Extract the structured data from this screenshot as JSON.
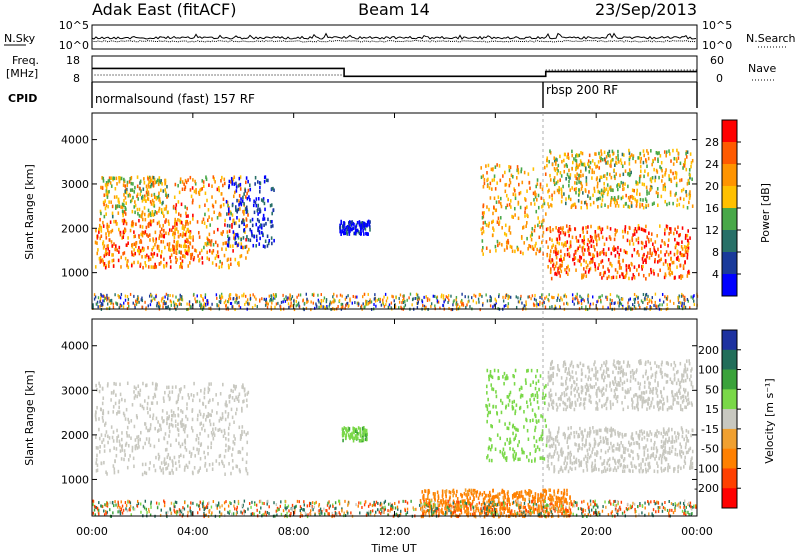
{
  "header": {
    "radar": "Adak East (fitACF)",
    "beam": "Beam 14",
    "date": "23/Sep/2013"
  },
  "noise_panel": {
    "left_label": "N.Sky",
    "right_label": "N.Search",
    "left_ticks": [
      "10^5",
      "10^0"
    ],
    "right_ticks": [
      "10^5",
      "10^0"
    ]
  },
  "freq_panel": {
    "left_label_line1": "Freq.",
    "left_label_line2": "[MHz]",
    "left_ticks": [
      "18",
      "8"
    ],
    "right_label": "Nave",
    "right_ticks": [
      "60",
      "0"
    ],
    "freq_levels": [
      {
        "from_hour": 0.0,
        "to_hour": 10.0,
        "mhz": 13.2
      },
      {
        "from_hour": 10.0,
        "to_hour": 18.0,
        "mhz": 10.2
      },
      {
        "from_hour": 18.0,
        "to_hour": 24.0,
        "mhz": 12.0
      }
    ]
  },
  "cpid_panel": {
    "label": "CPID",
    "programs": [
      {
        "name": "normalsound (fast) 157 RF",
        "start_hour": 0.0
      },
      {
        "name": "rbsp 200 RF",
        "start_hour": 18.0
      }
    ]
  },
  "power_panel": {
    "ylabel": "Slant Range [km]",
    "yticks": [
      "4000",
      "3000",
      "2000",
      "1000"
    ],
    "colorbar": {
      "label": "Power [dB]",
      "ticks": [
        "28",
        "24",
        "20",
        "16",
        "12",
        "8",
        "4"
      ],
      "colors": [
        "#ff0000",
        "#ff5a00",
        "#ff9400",
        "#ffc000",
        "#48a848",
        "#287068",
        "#1a3a9a",
        "#0000ff"
      ]
    }
  },
  "velocity_panel": {
    "ylabel": "Slant Range [km]",
    "yticks": [
      "4000",
      "3000",
      "2000",
      "1000"
    ],
    "colorbar": {
      "label": "Velocity [m s⁻¹]",
      "ticks": [
        "200",
        "100",
        "50",
        "15",
        "-15",
        "-50",
        "-100",
        "-200"
      ],
      "colors": [
        "#1e32a0",
        "#226e5a",
        "#3aa23a",
        "#7ad848",
        "#c8c8c0",
        "#f0a030",
        "#ff8000",
        "#ff4000",
        "#ff0000"
      ]
    }
  },
  "x_axis": {
    "label": "Time UT",
    "ticks": [
      "00:00",
      "04:00",
      "08:00",
      "12:00",
      "16:00",
      "20:00",
      "00:00"
    ]
  },
  "chart_data": {
    "type": "heatmap",
    "x_unit": "hours UT",
    "xlim": [
      0,
      24
    ],
    "ylim_km": [
      180,
      4600
    ],
    "power_scatter_regions": [
      {
        "t0": 0.1,
        "t1": 4.0,
        "r_lo": 1150,
        "r_hi": 2250,
        "value_db": 26
      },
      {
        "t0": 0.3,
        "t1": 3.0,
        "r_lo": 2300,
        "r_hi": 3200,
        "value_db": 20
      },
      {
        "t0": 3.2,
        "t1": 6.2,
        "r_lo": 1150,
        "r_hi": 3200,
        "value_db": 24
      },
      {
        "t0": 5.3,
        "t1": 7.2,
        "r_lo": 1600,
        "r_hi": 3200,
        "value_db": 6
      },
      {
        "t0": 9.8,
        "t1": 11.0,
        "r_lo": 1900,
        "r_hi": 2200,
        "value_db": 5
      },
      {
        "t0": 15.4,
        "t1": 18.0,
        "r_lo": 1450,
        "r_hi": 3500,
        "value_db": 22
      },
      {
        "t0": 18.0,
        "t1": 23.7,
        "r_lo": 900,
        "r_hi": 2100,
        "value_db": 28
      },
      {
        "t0": 18.0,
        "t1": 23.8,
        "r_lo": 2500,
        "r_hi": 3800,
        "value_db": 20
      }
    ],
    "velocity_scatter_regions": [
      {
        "t0": 0.1,
        "t1": 6.2,
        "r_lo": 1150,
        "r_hi": 3200,
        "value_ms": 0
      },
      {
        "t0": 9.9,
        "t1": 10.9,
        "r_lo": 1900,
        "r_hi": 2200,
        "value_ms": 40
      },
      {
        "t0": 15.6,
        "t1": 18.0,
        "r_lo": 1450,
        "r_hi": 3500,
        "value_ms": 30
      },
      {
        "t0": 18.0,
        "t1": 23.8,
        "r_lo": 1200,
        "r_hi": 2200,
        "value_ms": 0
      },
      {
        "t0": 18.0,
        "t1": 23.8,
        "r_lo": 2600,
        "r_hi": 3700,
        "value_ms": 0
      },
      {
        "t0": 13.0,
        "t1": 19.0,
        "r_lo": 200,
        "r_hi": 800,
        "value_ms": -60
      }
    ]
  }
}
